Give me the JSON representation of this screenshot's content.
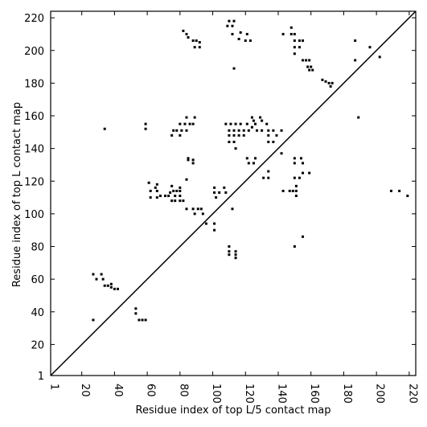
{
  "chart_data": {
    "type": "scatter",
    "title": "",
    "xlabel": "Residue index of top L/5 contact map",
    "ylabel": "Residue index of top L contact map",
    "xlim": [
      1,
      224
    ],
    "ylim": [
      1,
      224
    ],
    "xticks": [
      1,
      20,
      40,
      60,
      80,
      100,
      120,
      140,
      160,
      180,
      200,
      220
    ],
    "yticks": [
      1,
      20,
      40,
      60,
      80,
      100,
      120,
      140,
      160,
      180,
      200,
      220
    ],
    "xtick_labels": [
      "1",
      "20",
      "40",
      "60",
      "80",
      "100",
      "120",
      "140",
      "160",
      "180",
      "200",
      "220"
    ],
    "ytick_labels": [
      "1",
      "20",
      "40",
      "60",
      "80",
      "100",
      "120",
      "140",
      "160",
      "180",
      "200",
      "220"
    ],
    "grid": false,
    "diagonal": [
      [
        1,
        1
      ],
      [
        224,
        224
      ]
    ],
    "point_color": "#000000",
    "points": [
      [
        110,
        218
      ],
      [
        113,
        218
      ],
      [
        109,
        215
      ],
      [
        112,
        215
      ],
      [
        148,
        214
      ],
      [
        82,
        212
      ],
      [
        84,
        210
      ],
      [
        112,
        210
      ],
      [
        117,
        211
      ],
      [
        121,
        210
      ],
      [
        148,
        210
      ],
      [
        150,
        210
      ],
      [
        143,
        210
      ],
      [
        85,
        208
      ],
      [
        116,
        207
      ],
      [
        120,
        206
      ],
      [
        123,
        206
      ],
      [
        88,
        206
      ],
      [
        90,
        206
      ],
      [
        92,
        205
      ],
      [
        150,
        206
      ],
      [
        153,
        206
      ],
      [
        155,
        206
      ],
      [
        187,
        206
      ],
      [
        150,
        202
      ],
      [
        153,
        202
      ],
      [
        89,
        202
      ],
      [
        92,
        202
      ],
      [
        196,
        202
      ],
      [
        150,
        198
      ],
      [
        202,
        196
      ],
      [
        155,
        194
      ],
      [
        157,
        194
      ],
      [
        159,
        194
      ],
      [
        187,
        194
      ],
      [
        158,
        190
      ],
      [
        160,
        190
      ],
      [
        159,
        188
      ],
      [
        161,
        188
      ],
      [
        113,
        189
      ],
      [
        167,
        182
      ],
      [
        169,
        181
      ],
      [
        171,
        180
      ],
      [
        173,
        180
      ],
      [
        172,
        178
      ],
      [
        84,
        159
      ],
      [
        89,
        159
      ],
      [
        124,
        159
      ],
      [
        129,
        159
      ],
      [
        125,
        157
      ],
      [
        130,
        157
      ],
      [
        189,
        159
      ],
      [
        59,
        155
      ],
      [
        59,
        152
      ],
      [
        34,
        152
      ],
      [
        80,
        155
      ],
      [
        83,
        155
      ],
      [
        86,
        155
      ],
      [
        88,
        155
      ],
      [
        108,
        155
      ],
      [
        111,
        155
      ],
      [
        114,
        155
      ],
      [
        117,
        155
      ],
      [
        121,
        155
      ],
      [
        126,
        155
      ],
      [
        133,
        155
      ],
      [
        124,
        153
      ],
      [
        76,
        151
      ],
      [
        78,
        151
      ],
      [
        81,
        151
      ],
      [
        84,
        151
      ],
      [
        110,
        151
      ],
      [
        113,
        151
      ],
      [
        116,
        151
      ],
      [
        119,
        151
      ],
      [
        122,
        151
      ],
      [
        127,
        151
      ],
      [
        130,
        151
      ],
      [
        134,
        151
      ],
      [
        137,
        151
      ],
      [
        142,
        151
      ],
      [
        75,
        148
      ],
      [
        80,
        148
      ],
      [
        110,
        148
      ],
      [
        113,
        148
      ],
      [
        116,
        148
      ],
      [
        119,
        148
      ],
      [
        134,
        148
      ],
      [
        139,
        148
      ],
      [
        110,
        144
      ],
      [
        113,
        144
      ],
      [
        134,
        144
      ],
      [
        137,
        144
      ],
      [
        114,
        140
      ],
      [
        142,
        137
      ],
      [
        121,
        134
      ],
      [
        126,
        134
      ],
      [
        150,
        134
      ],
      [
        154,
        134
      ],
      [
        85,
        134
      ],
      [
        85,
        133
      ],
      [
        88,
        133
      ],
      [
        88,
        131
      ],
      [
        122,
        131
      ],
      [
        125,
        131
      ],
      [
        150,
        131
      ],
      [
        155,
        131
      ],
      [
        155,
        125
      ],
      [
        159,
        125
      ],
      [
        131,
        122
      ],
      [
        134,
        122
      ],
      [
        150,
        122
      ],
      [
        153,
        122
      ],
      [
        134,
        126
      ],
      [
        84,
        121
      ],
      [
        61,
        119
      ],
      [
        66,
        118
      ],
      [
        65,
        116
      ],
      [
        75,
        117
      ],
      [
        80,
        116
      ],
      [
        101,
        116
      ],
      [
        107,
        116
      ],
      [
        62,
        114
      ],
      [
        66,
        114
      ],
      [
        74,
        113
      ],
      [
        76,
        114
      ],
      [
        78,
        114
      ],
      [
        80,
        114
      ],
      [
        101,
        113
      ],
      [
        104,
        113
      ],
      [
        108,
        113
      ],
      [
        143,
        114
      ],
      [
        147,
        114
      ],
      [
        149,
        114
      ],
      [
        151,
        114
      ],
      [
        151,
        117
      ],
      [
        151,
        111
      ],
      [
        68,
        111
      ],
      [
        71,
        111
      ],
      [
        73,
        111
      ],
      [
        77,
        111
      ],
      [
        80,
        111
      ],
      [
        102,
        110
      ],
      [
        62,
        110
      ],
      [
        66,
        110
      ],
      [
        75,
        108
      ],
      [
        77,
        108
      ],
      [
        80,
        108
      ],
      [
        82,
        108
      ],
      [
        84,
        103
      ],
      [
        88,
        103
      ],
      [
        91,
        103
      ],
      [
        93,
        103
      ],
      [
        89,
        100
      ],
      [
        94,
        100
      ],
      [
        112,
        103
      ],
      [
        96,
        94
      ],
      [
        101,
        94
      ],
      [
        101,
        90
      ],
      [
        110,
        80
      ],
      [
        110,
        77
      ],
      [
        110,
        75
      ],
      [
        114,
        77
      ],
      [
        114,
        75
      ],
      [
        114,
        73
      ],
      [
        155,
        86
      ],
      [
        150,
        80
      ],
      [
        209,
        114
      ],
      [
        214,
        114
      ],
      [
        219,
        111
      ],
      [
        27,
        63
      ],
      [
        29,
        60
      ],
      [
        32,
        63
      ],
      [
        33,
        60
      ],
      [
        34,
        56
      ],
      [
        36,
        56
      ],
      [
        38,
        57
      ],
      [
        38,
        55
      ],
      [
        40,
        54
      ],
      [
        42,
        54
      ],
      [
        53,
        42
      ],
      [
        53,
        39
      ],
      [
        55,
        35
      ],
      [
        57,
        35
      ],
      [
        59,
        35
      ],
      [
        27,
        35
      ]
    ]
  }
}
